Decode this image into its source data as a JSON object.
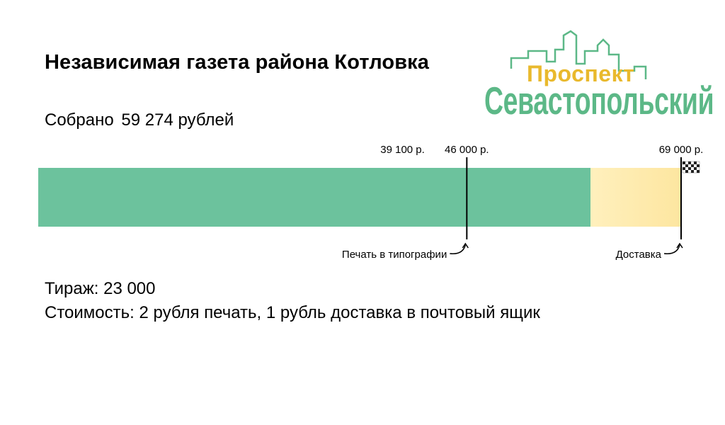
{
  "header": {
    "title": "Независимая газета района Котловка"
  },
  "fundraising": {
    "collected_prefix": "Собрано",
    "collected_amount": "59 274 рублей"
  },
  "info": {
    "circulation": "Тираж: 23 000",
    "cost": "Стоимость: 2 рубля печать, 1 рубль доставка в почтовый ящик"
  },
  "logo": {
    "line1": "Проспект",
    "line2": "Севастопольский",
    "colors": {
      "yellow": "#e9b92d",
      "green": "#5cb887"
    }
  },
  "chart_data": {
    "type": "bar",
    "orientation": "horizontal",
    "raised": 59274,
    "goal": 69000,
    "colors": {
      "raised": "#6cc29d",
      "remaining": "#fde6a0"
    },
    "ticks": [
      {
        "value": 39100,
        "label": "39 100 р."
      },
      {
        "value": 46000,
        "label": "46 000 р."
      },
      {
        "value": 69000,
        "label": "69 000 р."
      }
    ],
    "milestones": [
      {
        "value": 46000,
        "label": "Печать в типографии"
      },
      {
        "value": 69000,
        "label": "Доставка",
        "flag": true
      }
    ]
  }
}
